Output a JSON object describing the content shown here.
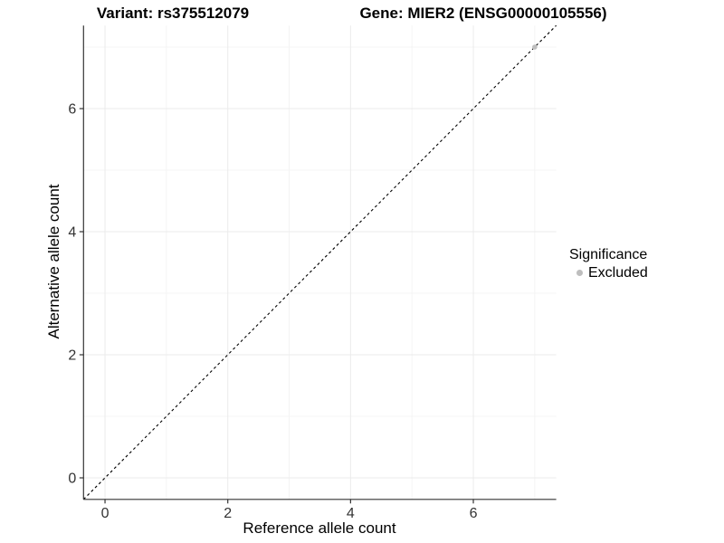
{
  "titles": {
    "variant": "Variant: rs375512079",
    "gene": "Gene: MIER2 (ENSG00000105556)"
  },
  "chart_data": {
    "type": "scatter",
    "xlabel": "Reference allele count",
    "ylabel": "Alternative allele count",
    "xlim": [
      -0.35,
      7.35
    ],
    "ylim": [
      -0.35,
      7.35
    ],
    "xticks": [
      0,
      2,
      4,
      6
    ],
    "yticks": [
      0,
      2,
      4,
      6
    ],
    "xminor": [
      1,
      3,
      5,
      7
    ],
    "yminor": [
      1,
      3,
      5,
      7
    ],
    "grid": true,
    "legend": {
      "title": "Significance",
      "position": "right",
      "entries": [
        {
          "label": "Excluded",
          "color": "#bebebe"
        }
      ]
    },
    "series": [
      {
        "name": "Excluded",
        "color": "#bebebe",
        "marker": "circle",
        "points": [
          [
            7,
            7
          ]
        ]
      }
    ],
    "reference_line": {
      "type": "identity",
      "equation": "y = x",
      "style": "dashed",
      "color": "#000000"
    }
  },
  "colors": {
    "background": "#ffffff",
    "axis_line": "#333333",
    "tick_text": "#333333",
    "grid_major": "#ebebeb",
    "grid_minor": "#f4f4f4"
  }
}
